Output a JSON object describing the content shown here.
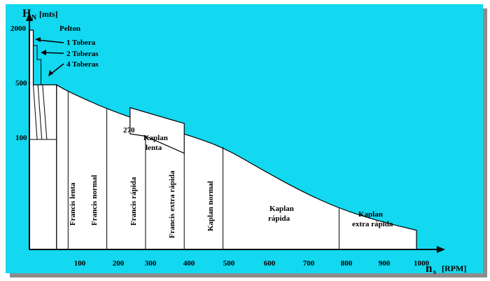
{
  "colors": {
    "background": "#12d8f0",
    "shadow": "#8c8c8c",
    "region_fill": "#ffffff",
    "line": "#000000"
  },
  "chart_data": {
    "type": "area",
    "x_axis": {
      "label_main": "n",
      "label_sub": "s",
      "label_unit": "[RPM]",
      "ticks": [
        "100",
        "200",
        "300",
        "400",
        "500",
        "600",
        "700",
        "800",
        "900",
        "1000"
      ]
    },
    "y_axis": {
      "label_main": "H",
      "label_sub": "N",
      "label_unit": "[mts]",
      "ticks": [
        "2000",
        "500",
        "100"
      ]
    },
    "limit_curve": {
      "name": "",
      "points": [
        [
          70,
          500
        ],
        [
          100,
          410
        ],
        [
          200,
          245
        ],
        [
          300,
          165
        ],
        [
          400,
          118
        ],
        [
          500,
          92
        ],
        [
          600,
          72
        ],
        [
          700,
          57
        ],
        [
          800,
          47
        ],
        [
          900,
          41
        ],
        [
          1000,
          37
        ]
      ]
    },
    "kaplan_lenta_boundary": [
      [
        260,
        255
      ],
      [
        400,
        160
      ],
      [
        400,
        86
      ],
      [
        300,
        110
      ],
      [
        260,
        118
      ]
    ],
    "labels": {
      "pelton": "Pelton",
      "tobera_1": "1 Tobera",
      "toberas_2": "2 Toberas",
      "toberas_4": "4 Toberas",
      "kaplan_270": "270",
      "francis_lenta": "Francis lenta",
      "francis_normal": "Francis normal",
      "francis_rapida": "Francis rápida",
      "francis_extra_rapida": "Francis extra rápida",
      "kaplan_normal": "Kaplan normal",
      "kaplan_lenta_line1": "Kaplan",
      "kaplan_lenta_line2": "lenta",
      "kaplan_rapida_line1": "Kaplan",
      "kaplan_rapida_line2": "rápida",
      "kaplan_extra_line1": "Kaplan",
      "kaplan_extra_line2": "extra rápida"
    },
    "regions": [
      {
        "label": "Pelton",
        "x_range": [
          0,
          70
        ]
      },
      {
        "label": "Francis lenta",
        "x_range": [
          70,
          100
        ]
      },
      {
        "label": "Francis normal",
        "x_range": [
          100,
          200
        ]
      },
      {
        "label": "Francis rápida",
        "x_range": [
          200,
          300
        ]
      },
      {
        "label": "Francis extra rápida",
        "x_range": [
          300,
          400
        ]
      },
      {
        "label": "Kaplan normal",
        "x_range": [
          400,
          500
        ]
      },
      {
        "label": "Kaplan rápida",
        "x_range": [
          500,
          800
        ]
      },
      {
        "label": "Kaplan extra rápida",
        "x_range": [
          800,
          1000
        ]
      }
    ],
    "grid": false,
    "legend": "none"
  }
}
